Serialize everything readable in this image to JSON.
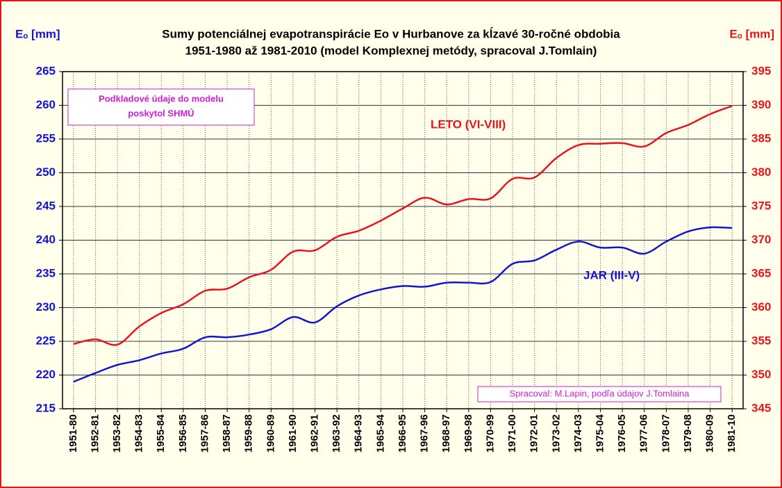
{
  "chart_data": {
    "type": "line",
    "title": [
      "Sumy potenciálnej evapotranspirácie Eo v Hurbanove za kĺzavé 30-ročné obdobia",
      "1951-1980 až 1981-2010 (model Komplexnej metódy, spracoval J.Tomlain)"
    ],
    "y_label": "Eₒ [mm]",
    "y2_label": "Eₒ [mm]",
    "note_source": [
      "Podkladové údaje do modelu",
      "poskytol SHMÚ"
    ],
    "note_author": "Spracoval: M.Lapin, podľa údajov J.Tomlaina",
    "categories": [
      "1951-80",
      "1952-81",
      "1953-82",
      "1954-83",
      "1955-84",
      "1956-85",
      "1957-86",
      "1958-87",
      "1959-88",
      "1960-89",
      "1961-90",
      "1962-91",
      "1963-92",
      "1964-93",
      "1965-94",
      "1966-95",
      "1967-96",
      "1968-97",
      "1969-98",
      "1970-99",
      "1971-00",
      "1972-01",
      "1973-02",
      "1974-03",
      "1975-04",
      "1976-05",
      "1977-06",
      "1978-07",
      "1979-08",
      "1980-09",
      "1981-10"
    ],
    "series": [
      {
        "name": "LETO (VI-VIII)",
        "color": "#e8141c",
        "axis": "y2",
        "values": [
          354.6,
          355.3,
          354.5,
          357.2,
          359.2,
          360.5,
          362.5,
          362.8,
          364.5,
          365.6,
          368.3,
          368.5,
          370.5,
          371.4,
          372.9,
          374.7,
          376.3,
          375.3,
          376.1,
          376.2,
          379.1,
          379.3,
          382.2,
          384.1,
          384.3,
          384.4,
          383.9,
          385.9,
          387.1,
          388.7,
          389.9
        ]
      },
      {
        "name": "JAR (III-V)",
        "color": "#1414cc",
        "values": [
          219,
          220.3,
          221.5,
          222.2,
          223.2,
          223.9,
          225.6,
          225.6,
          226,
          226.8,
          228.6,
          227.8,
          230.2,
          231.8,
          232.7,
          233.2,
          233.1,
          233.7,
          233.7,
          233.8,
          236.5,
          237,
          238.6,
          239.8,
          238.9,
          238.9,
          238,
          239.8,
          241.3,
          241.9,
          241.8
        ]
      }
    ],
    "ylim": [
      215,
      265
    ],
    "yticks": [
      215,
      220,
      225,
      230,
      235,
      240,
      245,
      250,
      255,
      260,
      265
    ],
    "y2lim": [
      345,
      395
    ],
    "y2ticks": [
      345,
      350,
      355,
      360,
      365,
      370,
      375,
      380,
      385,
      390,
      395
    ],
    "grid": true
  }
}
